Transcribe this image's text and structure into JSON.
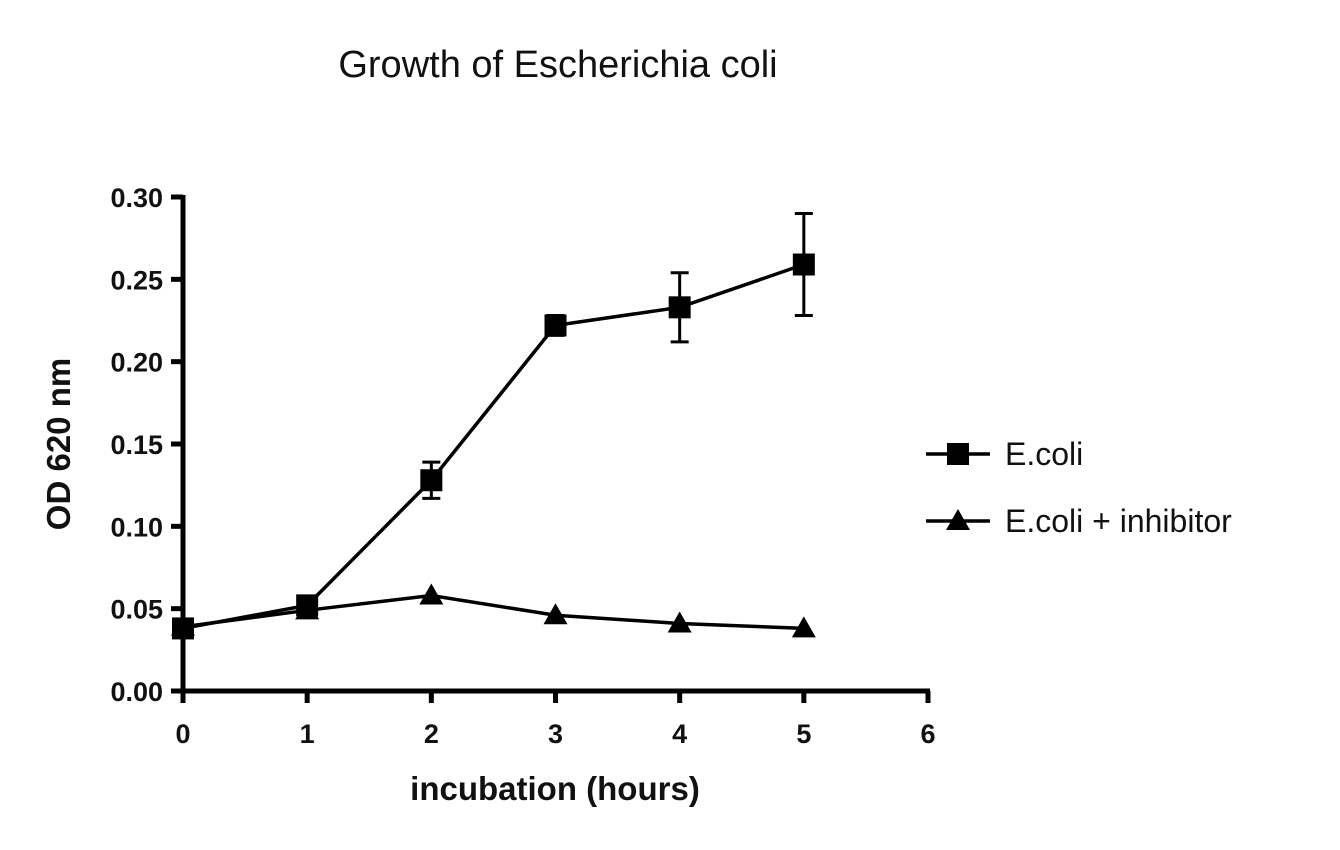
{
  "chart_data": {
    "type": "line",
    "title": "Growth of Escherichia coli",
    "xlabel": "incubation (hours)",
    "ylabel": "OD 620 nm",
    "xlim": [
      0,
      6
    ],
    "ylim": [
      0,
      0.3
    ],
    "xticks": [
      "0",
      "1",
      "2",
      "3",
      "4",
      "5",
      "6"
    ],
    "yticks": [
      "0.00",
      "0.05",
      "0.10",
      "0.15",
      "0.20",
      "0.25",
      "0.30"
    ],
    "grid": false,
    "legend_position": "right",
    "x": [
      0,
      1,
      2,
      3,
      4,
      5
    ],
    "series": [
      {
        "name": "E.coli",
        "marker": "square",
        "color": "#000000",
        "values": [
          0.038,
          0.052,
          0.128,
          0.222,
          0.233,
          0.259
        ],
        "error": [
          0.002,
          0.003,
          0.011,
          0.006,
          0.021,
          0.031
        ]
      },
      {
        "name": "E.coli + inhibitor",
        "marker": "triangle",
        "color": "#000000",
        "values": [
          0.039,
          0.049,
          0.058,
          0.046,
          0.041,
          0.038
        ]
      }
    ]
  }
}
